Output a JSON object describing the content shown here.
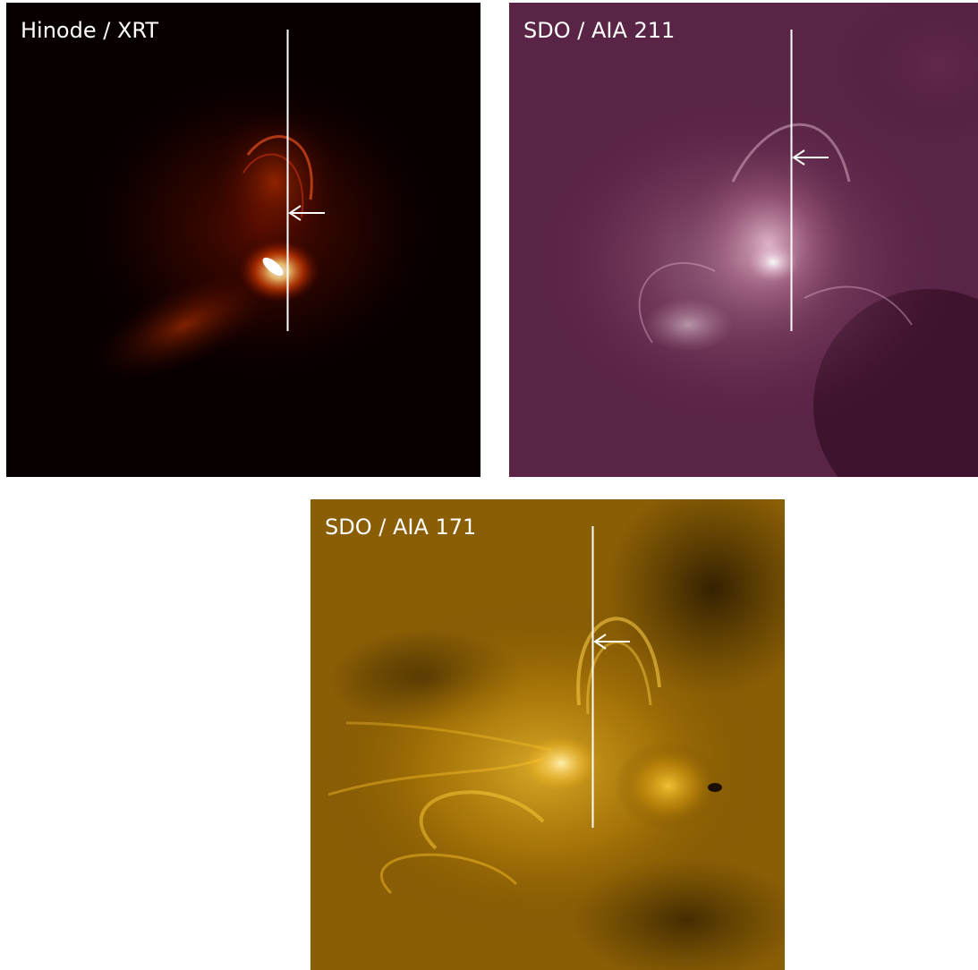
{
  "panels": [
    {
      "key": "xrt",
      "label": "Hinode / XRT",
      "colormap": "red-hot",
      "background": "#080000"
    },
    {
      "key": "aia211",
      "label": "SDO / AIA 211",
      "colormap": "magenta-purple",
      "background": "#3f1530"
    },
    {
      "key": "aia171",
      "label": "SDO / AIA 171",
      "colormap": "gold",
      "background": "#2a1c00"
    }
  ],
  "annotations": {
    "line_color": "#ffffff",
    "marker": "arrow pointing left toward vertical cut line"
  }
}
